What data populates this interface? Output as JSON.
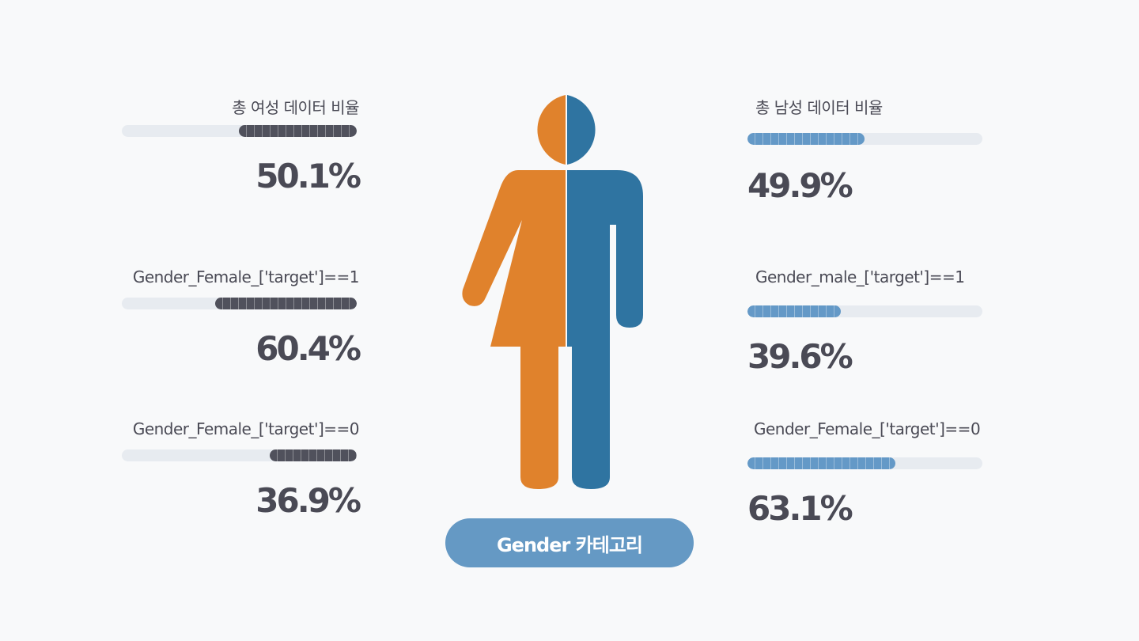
{
  "colors": {
    "female": "#e0822c",
    "male": "#2f74a1",
    "female_bar": "#50515c",
    "male_bar": "#6499c7",
    "track": "#e7ebf0",
    "pill": "#6599c4",
    "text": "#4a4a55"
  },
  "left": [
    {
      "label": "총 여성 데이터  비율",
      "value": "50.1%",
      "level": 0.501
    },
    {
      "label": "Gender_Female_['target']==1",
      "value": "60.4%",
      "level": 0.604
    },
    {
      "label": "Gender_Female_['target']==0",
      "value": "36.9%",
      "level": 0.369
    }
  ],
  "right": [
    {
      "label": "총 남성 데이터  비율",
      "value": "49.9%",
      "level": 0.499
    },
    {
      "label": "Gender_male_['target']==1",
      "value": "39.6%",
      "level": 0.396
    },
    {
      "label": "Gender_Female_['target']==0",
      "value": "63.1%",
      "level": 0.631
    }
  ],
  "icon": "gender-split-person-icon",
  "category_label": "Gender 카테고리"
}
